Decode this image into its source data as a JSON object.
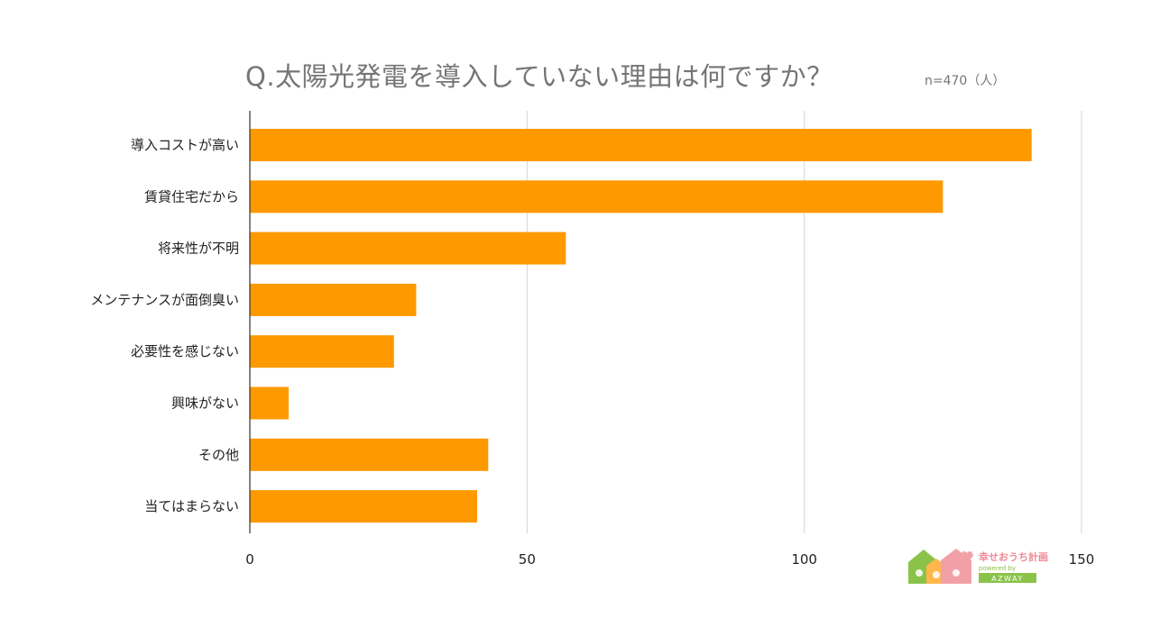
{
  "chart_data": {
    "type": "bar",
    "orientation": "horizontal",
    "title": "Q.太陽光発電を導入していない理由は何ですか？",
    "note": "n=470（人）",
    "categories": [
      "導入コストが高い",
      "賃貸住宅だから",
      "将来性が不明",
      "メンテナンスが面倒臭い",
      "必要性を感じない",
      "興味がない",
      "その他",
      "当てはまらない"
    ],
    "values": [
      141,
      125,
      57,
      30,
      26,
      7,
      43,
      41
    ],
    "xlim": [
      0,
      150
    ],
    "xticks": [
      0,
      50,
      100,
      150
    ],
    "xlabel": "",
    "ylabel": "",
    "grid": true,
    "bar_color": "#FF9900"
  },
  "logo": {
    "text": "幸せおうち計画",
    "sub_text": "powered by",
    "brand": "AZWAY",
    "colors": [
      "#8BC34A",
      "#F2A0A8",
      "#FF9900"
    ]
  }
}
